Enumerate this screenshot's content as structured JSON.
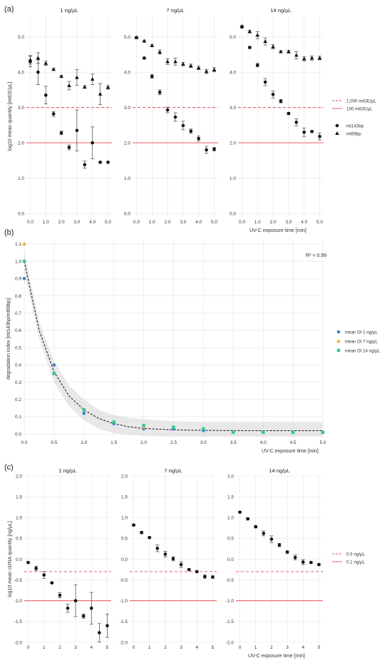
{
  "figure": {
    "panel_a_label": "(a)",
    "panel_b_label": "(b)",
    "panel_c_label": "(c)"
  },
  "chart_data": [
    {
      "panel": "(a)",
      "type": "scatter",
      "ylabel": "log10 mean quantity [mtGE/µL]",
      "xlabel": "UV-C exposure time [min]",
      "ylim": [
        -0.1,
        5.6
      ],
      "yticks": [
        "0.0",
        "1.0",
        "2.0",
        "3.0",
        "4.0",
        "5.0"
      ],
      "xlim": [
        -0.25,
        5.25
      ],
      "xticks": [
        "0.0",
        "1.0",
        "2.0",
        "3.0",
        "4.0",
        "5.0"
      ],
      "grid": true,
      "legend_position": "right",
      "reference_lines": [
        {
          "label": "1,000 mtGE/µL",
          "y": 3.0,
          "style": "dashed",
          "color": "#e8474f"
        },
        {
          "label": "100 mtGE/µL",
          "y": 2.0,
          "style": "solid",
          "color": "#e8474f"
        }
      ],
      "legend_series": [
        {
          "label": "mt143bp",
          "marker": "circle"
        },
        {
          "label": "mt69bp",
          "marker": "triangle"
        }
      ],
      "facets": [
        {
          "title": "1 ng/µL",
          "series": [
            {
              "name": "mt143bp",
              "marker": "circle",
              "x": [
                0,
                0.5,
                1,
                1.5,
                2,
                2.5,
                3,
                3.5,
                4,
                4.5,
                5
              ],
              "y": [
                4.3,
                4.0,
                3.35,
                2.82,
                2.28,
                1.87,
                2.35,
                1.38,
                2.0,
                1.45,
                1.45
              ],
              "err": [
                0.15,
                0.35,
                0.25,
                0.07,
                0.05,
                0.07,
                0.58,
                0.1,
                0.45,
                0.02,
                0.02
              ]
            },
            {
              "name": "mt69bp",
              "marker": "triangle",
              "x": [
                0,
                0.5,
                1,
                1.5,
                2,
                2.5,
                3,
                3.5,
                4,
                4.5,
                5
              ],
              "y": [
                4.35,
                4.4,
                4.25,
                4.08,
                3.88,
                3.62,
                3.85,
                3.58,
                3.8,
                3.38,
                3.57
              ],
              "err": [
                0.12,
                0.15,
                0.06,
                0.03,
                0.03,
                0.12,
                0.22,
                0.04,
                0.15,
                0.3,
                0.05
              ]
            }
          ]
        },
        {
          "title": "7 ng/µL",
          "series": [
            {
              "name": "mt143bp",
              "marker": "circle",
              "x": [
                0,
                0.5,
                1,
                1.5,
                2,
                2.5,
                3,
                3.5,
                4,
                4.5,
                5
              ],
              "y": [
                4.98,
                4.4,
                3.88,
                3.43,
                2.93,
                2.73,
                2.49,
                2.33,
                2.12,
                1.8,
                1.82
              ],
              "err": [
                0.03,
                0.03,
                0.05,
                0.07,
                0.08,
                0.12,
                0.12,
                0.06,
                0.07,
                0.1,
                0.05
              ]
            },
            {
              "name": "mt69bp",
              "marker": "triangle",
              "x": [
                0,
                0.5,
                1,
                1.5,
                2,
                2.5,
                3,
                3.5,
                4,
                4.5,
                5
              ],
              "y": [
                4.98,
                4.88,
                4.75,
                4.57,
                4.3,
                4.3,
                4.23,
                4.18,
                4.12,
                4.02,
                4.07
              ],
              "err": [
                0.02,
                0.03,
                0.03,
                0.06,
                0.08,
                0.1,
                0.05,
                0.05,
                0.05,
                0.06,
                0.06
              ]
            }
          ]
        },
        {
          "title": "14 ng/µL",
          "series": [
            {
              "name": "mt143bp",
              "marker": "circle",
              "x": [
                0,
                0.5,
                1,
                1.5,
                2,
                2.5,
                3,
                3.5,
                4,
                4.5,
                5
              ],
              "y": [
                5.28,
                4.7,
                4.2,
                3.72,
                3.37,
                3.18,
                2.83,
                2.58,
                2.3,
                2.32,
                2.18
              ],
              "err": [
                0.02,
                0.03,
                0.05,
                0.1,
                0.1,
                0.05,
                0.03,
                0.1,
                0.12,
                0.02,
                0.1
              ]
            },
            {
              "name": "mt69bp",
              "marker": "triangle",
              "x": [
                0,
                0.5,
                1,
                1.5,
                2,
                2.5,
                3,
                3.5,
                4,
                4.5,
                5
              ],
              "y": [
                5.3,
                5.15,
                5.05,
                4.87,
                4.72,
                4.58,
                4.58,
                4.48,
                4.38,
                4.4,
                4.4
              ],
              "err": [
                0.02,
                0.04,
                0.1,
                0.1,
                0.06,
                0.03,
                0.04,
                0.1,
                0.06,
                0.06,
                0.05
              ]
            }
          ]
        }
      ]
    },
    {
      "panel": "(b)",
      "type": "scatter",
      "ylabel": "degradation index [mt143bp/mt69bp]",
      "xlabel": "UV-C exposure time [min]",
      "xlim": [
        0,
        5.0
      ],
      "xticks": [
        "0.0",
        "0.5",
        "1.0",
        "1.5",
        "2.0",
        "2.5",
        "3.0",
        "3.5",
        "4.0",
        "4.5",
        "5.0"
      ],
      "ylim": [
        -0.02,
        1.12
      ],
      "yticks": [
        "0.0",
        "0.1",
        "0.2",
        "0.3",
        "0.4",
        "0.5",
        "0.6",
        "0.7",
        "0.8",
        "0.9",
        "1.0",
        "1.1"
      ],
      "grid": true,
      "annotation": "R² = 0.99",
      "legend_position": "right",
      "fit": {
        "x": [
          0,
          0.25,
          0.5,
          0.75,
          1.0,
          1.25,
          1.5,
          1.75,
          2.0,
          2.5,
          3.0,
          3.5,
          4.0,
          4.5,
          5.0
        ],
        "y": [
          1.0,
          0.6,
          0.36,
          0.22,
          0.14,
          0.09,
          0.06,
          0.042,
          0.032,
          0.024,
          0.021,
          0.02,
          0.019,
          0.019,
          0.019
        ],
        "ci_lower": [
          0.94,
          0.55,
          0.3,
          0.16,
          0.08,
          0.03,
          0.005,
          -0.005,
          -0.01,
          -0.015,
          -0.015,
          -0.015,
          -0.015,
          -0.015,
          -0.015
        ],
        "ci_upper": [
          1.06,
          0.65,
          0.42,
          0.28,
          0.2,
          0.14,
          0.11,
          0.095,
          0.085,
          0.075,
          0.07,
          0.07,
          0.07,
          0.07,
          0.07
        ]
      },
      "series": [
        {
          "name": "mean DI  1 ng/µL",
          "marker": "circle",
          "color": "#3b7fd9",
          "x": [
            0,
            0.5,
            1,
            1.5,
            2,
            2.5,
            3,
            3.5,
            4,
            4.5,
            5
          ],
          "y": [
            0.9,
            0.4,
            0.12,
            0.06,
            0.03,
            0.03,
            0.02,
            0.01,
            0.01,
            0.01,
            0.01
          ]
        },
        {
          "name": "mean DI  7 ng/µL",
          "marker": "triangle",
          "color": "#f5a623",
          "x": [
            0,
            0.5,
            1,
            1.5,
            2,
            2.5,
            3,
            3.5,
            4,
            4.5,
            5
          ],
          "y": [
            1.1,
            0.35,
            0.14,
            0.07,
            0.04,
            0.04,
            0.03,
            0.01,
            0.01,
            0.01,
            0.01
          ]
        },
        {
          "name": "mean DI 14 ng/µL",
          "marker": "square",
          "color": "#2ecc8f",
          "x": [
            0,
            0.5,
            1,
            1.5,
            2,
            2.5,
            3,
            3.5,
            4,
            4.5,
            5
          ],
          "y": [
            1.0,
            0.35,
            0.14,
            0.07,
            0.05,
            0.04,
            0.03,
            0.01,
            0.01,
            0.01,
            0.01
          ]
        }
      ]
    },
    {
      "panel": "(c)",
      "type": "scatter",
      "ylabel": "log10 mean nDNA quantity [ng/µL]",
      "xlabel": "UV-C exposure time [min]",
      "ylim": [
        -2.0,
        2.0
      ],
      "yticks": [
        "-2.0",
        "-1.5",
        "-1.0",
        "-0.5",
        "0.0",
        "0.5",
        "1.0",
        "1.5",
        "2.0"
      ],
      "xlim": [
        -0.25,
        5.25
      ],
      "xticks": [
        "0",
        "1",
        "2",
        "3",
        "4",
        "5"
      ],
      "grid": true,
      "legend_position": "right",
      "reference_lines": [
        {
          "label": "0.5 ng/µL",
          "y": -0.3,
          "style": "dashed",
          "color": "#e8474f"
        },
        {
          "label": "0.1 ng/µL",
          "y": -1.0,
          "style": "solid",
          "color": "#e8474f"
        }
      ],
      "facets": [
        {
          "title": "1 ng/µL",
          "series": [
            {
              "name": "nDNA",
              "marker": "circle",
              "x": [
                0,
                0.5,
                1,
                1.5,
                2,
                2.5,
                3,
                3.5,
                4,
                4.5,
                5
              ],
              "y": [
                -0.08,
                -0.22,
                -0.38,
                -0.57,
                -0.87,
                -1.18,
                -1.0,
                -1.37,
                -1.18,
                -1.77,
                -1.6
              ],
              "err": [
                0.02,
                0.05,
                0.08,
                0.02,
                0.06,
                0.1,
                0.38,
                0.05,
                0.38,
                0.22,
                0.28
              ]
            }
          ]
        },
        {
          "title": "7 ng/µL",
          "series": [
            {
              "name": "nDNA",
              "marker": "circle",
              "x": [
                0,
                0.5,
                1,
                1.5,
                2,
                2.5,
                3,
                3.5,
                4,
                4.5,
                5
              ],
              "y": [
                0.82,
                0.64,
                0.52,
                0.26,
                0.12,
                0.01,
                -0.13,
                -0.25,
                -0.3,
                -0.42,
                -0.43
              ],
              "err": [
                0.02,
                0.03,
                0.02,
                0.08,
                0.07,
                0.05,
                0.07,
                0.02,
                0.02,
                0.04,
                0.03
              ]
            }
          ]
        },
        {
          "title": "14 ng/µL",
          "series": [
            {
              "name": "nDNA",
              "marker": "circle",
              "x": [
                0,
                0.5,
                1,
                1.5,
                2,
                2.5,
                3,
                3.5,
                4,
                4.5,
                5
              ],
              "y": [
                1.13,
                0.97,
                0.78,
                0.62,
                0.48,
                0.34,
                0.17,
                0.04,
                -0.07,
                -0.08,
                -0.13
              ],
              "err": [
                0.02,
                0.03,
                0.03,
                0.06,
                0.08,
                0.04,
                0.03,
                0.06,
                0.06,
                0.02,
                0.02
              ]
            }
          ]
        }
      ]
    }
  ]
}
